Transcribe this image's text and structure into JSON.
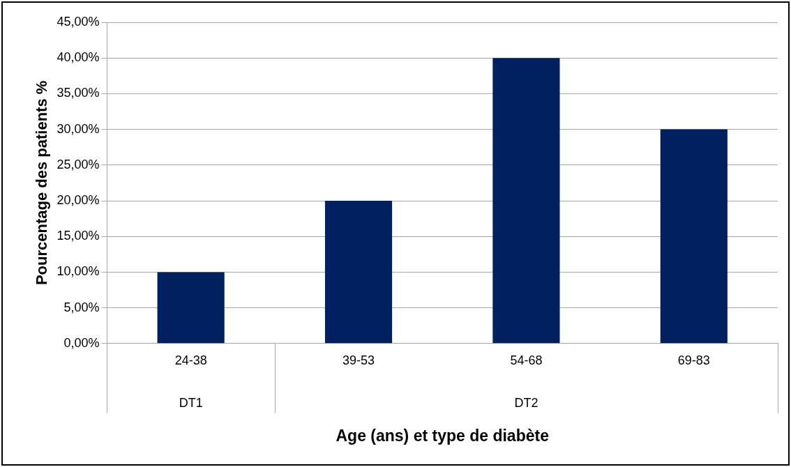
{
  "chart_data": {
    "type": "bar",
    "xlabel": "Age (ans) et type de diabète",
    "ylabel": "Pourcentage des patients %",
    "categories": [
      "24-38",
      "39-53",
      "54-68",
      "69-83"
    ],
    "values": [
      10,
      20,
      40,
      30
    ],
    "color": "#002060",
    "ylim": [
      0,
      45
    ],
    "yticks": [
      {
        "value": 0,
        "label": "0,00%"
      },
      {
        "value": 5,
        "label": "5,00%"
      },
      {
        "value": 10,
        "label": "10,00%"
      },
      {
        "value": 15,
        "label": "15,00%"
      },
      {
        "value": 20,
        "label": "20,00%"
      },
      {
        "value": 25,
        "label": "25,00%"
      },
      {
        "value": 30,
        "label": "30,00%"
      },
      {
        "value": 35,
        "label": "35,00%"
      },
      {
        "value": 40,
        "label": "40,00%"
      },
      {
        "value": 45,
        "label": "45,00%"
      }
    ],
    "grid": "y",
    "legend": false,
    "annotations": [
      "DT1",
      "DT2"
    ]
  }
}
